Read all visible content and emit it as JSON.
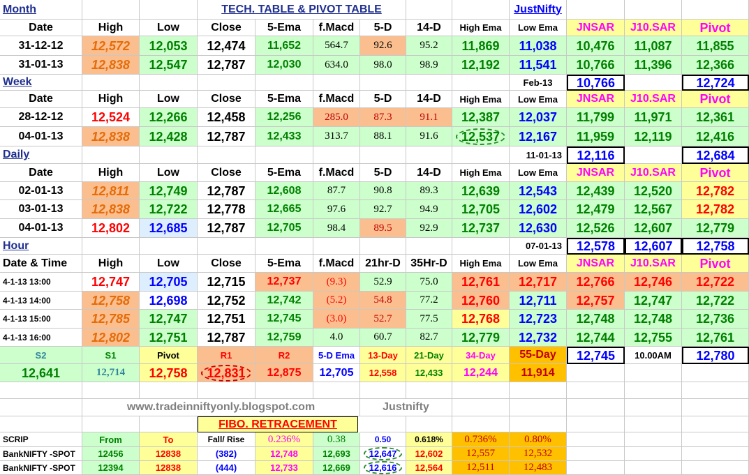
{
  "title": "TECH. TABLE  & PIVOT TABLE",
  "brand": "JustNifty",
  "website": "www.tradeinniftyonly.blogspot.com",
  "brand2": "Justnifty",
  "sections": {
    "month": "Month",
    "week": "Week",
    "daily": "Daily",
    "hour": "Hour"
  },
  "headers": {
    "date": "Date",
    "date_time": "Date & Time",
    "high": "High",
    "low": "Low",
    "close": "Close",
    "ema5": "5-Ema",
    "fmacd": "f.Macd",
    "d5": "5-D",
    "d14": "14-D",
    "hr21": "21hr-D",
    "hr35": "35Hr-D",
    "high_ema": "High Ema",
    "low_ema": "Low Ema",
    "jnsar": "JNSAR",
    "j10sar": "J10.SAR",
    "pivot": "Pivot"
  },
  "month": {
    "rows": [
      {
        "date": "31-12-12",
        "high": "12,572",
        "low": "12,053",
        "close": "12,474",
        "ema5": "11,652",
        "fmacd": "564.7",
        "d5": "92.6",
        "d14": "95.2",
        "high_ema": "11,869",
        "low_ema": "11,038",
        "jnsar": "10,476",
        "j10sar": "11,087",
        "pivot": "11,855"
      },
      {
        "date": "31-01-13",
        "high": "12,838",
        "low": "12,547",
        "close": "12,787",
        "ema5": "12,030",
        "fmacd": "634.0",
        "d5": "98.0",
        "d14": "98.9",
        "high_ema": "12,192",
        "low_ema": "11,541",
        "jnsar": "10,766",
        "j10sar": "11,396",
        "pivot": "12,366"
      }
    ],
    "next_label": "Feb-13",
    "next_jnsar": "10,766",
    "next_pivot": "12,724"
  },
  "week": {
    "rows": [
      {
        "date": "28-12-12",
        "high": "12,524",
        "low": "12,266",
        "close": "12,458",
        "ema5": "12,256",
        "fmacd": "285.0",
        "d5": "87.3",
        "d14": "91.1",
        "high_ema": "12,387",
        "low_ema": "12,037",
        "jnsar": "11,799",
        "j10sar": "11,971",
        "pivot": "12,361"
      },
      {
        "date": "04-01-13",
        "high": "12,838",
        "low": "12,428",
        "close": "12,787",
        "ema5": "12,433",
        "fmacd": "313.7",
        "d5": "88.1",
        "d14": "91.6",
        "high_ema": "12,537",
        "low_ema": "12,167",
        "jnsar": "11,959",
        "j10sar": "12,119",
        "pivot": "12,416"
      }
    ],
    "next_label": "11-01-13",
    "next_jnsar": "12,116",
    "next_pivot": "12,684"
  },
  "daily": {
    "rows": [
      {
        "date": "02-01-13",
        "high": "12,811",
        "low": "12,749",
        "close": "12,787",
        "ema5": "12,608",
        "fmacd": "87.7",
        "d5": "90.8",
        "d14": "89.3",
        "high_ema": "12,639",
        "low_ema": "12,543",
        "jnsar": "12,439",
        "j10sar": "12,520",
        "pivot": "12,782"
      },
      {
        "date": "03-01-13",
        "high": "12,838",
        "low": "12,722",
        "close": "12,778",
        "ema5": "12,665",
        "fmacd": "97.6",
        "d5": "92.7",
        "d14": "94.9",
        "high_ema": "12,705",
        "low_ema": "12,602",
        "jnsar": "12,479",
        "j10sar": "12,567",
        "pivot": "12,782"
      },
      {
        "date": "04-01-13",
        "high": "12,802",
        "low": "12,685",
        "close": "12,787",
        "ema5": "12,705",
        "fmacd": "98.4",
        "d5": "89.5",
        "d14": "92.9",
        "high_ema": "12,737",
        "low_ema": "12,630",
        "jnsar": "12,526",
        "j10sar": "12,607",
        "pivot": "12,779"
      }
    ],
    "next_label": "07-01-13",
    "next_jnsar": "12,578",
    "next_j10sar": "12,607",
    "next_pivot": "12,758"
  },
  "hour": {
    "rows": [
      {
        "date": "4-1-13 13:00",
        "high": "12,747",
        "low": "12,705",
        "close": "12,715",
        "ema5": "12,737",
        "fmacd": "(9.3)",
        "d5": "52.9",
        "d14": "75.0",
        "high_ema": "12,761",
        "low_ema": "12,717",
        "jnsar": "12,766",
        "j10sar": "12,746",
        "pivot": "12,722"
      },
      {
        "date": "4-1-13 14:00",
        "high": "12,758",
        "low": "12,698",
        "close": "12,752",
        "ema5": "12,742",
        "fmacd": "(5.2)",
        "d5": "54.8",
        "d14": "77.2",
        "high_ema": "12,760",
        "low_ema": "12,711",
        "jnsar": "12,757",
        "j10sar": "12,747",
        "pivot": "12,722"
      },
      {
        "date": "4-1-13 15:00",
        "high": "12,785",
        "low": "12,747",
        "close": "12,751",
        "ema5": "12,745",
        "fmacd": "(3.0)",
        "d5": "52.7",
        "d14": "77.5",
        "high_ema": "12,768",
        "low_ema": "12,723",
        "jnsar": "12,748",
        "j10sar": "12,748",
        "pivot": "12,736"
      },
      {
        "date": "4-1-13 16:00",
        "high": "12,802",
        "low": "12,751",
        "close": "12,787",
        "ema5": "12,759",
        "fmacd": "4.0",
        "d5": "60.7",
        "d14": "82.7",
        "high_ema": "12,779",
        "low_ema": "12,732",
        "jnsar": "12,744",
        "j10sar": "12,755",
        "pivot": "12,761"
      }
    ]
  },
  "pivot_levels": {
    "labels": [
      "S2",
      "S1",
      "Pivot",
      "R1",
      "R2",
      "5-D Ema",
      "13-Day",
      "21-Day",
      "34-Day",
      "55-Day"
    ],
    "values": [
      "12,641",
      "12,714",
      "12,758",
      "12,831",
      "12,875",
      "12,705",
      "12,558",
      "12,433",
      "12,244",
      "11,914"
    ],
    "extra_jnsar": "12,745",
    "time": "10.00AM",
    "extra_pivot": "12,780"
  },
  "fibo": {
    "title": "FIBO. RETRACEMENT",
    "headers": [
      "SCRIP",
      "From",
      "To",
      "Fall/ Rise",
      "0.236%",
      "0.38",
      "0.50",
      "0.618%",
      "0.736%",
      "0.80%"
    ],
    "rows": [
      [
        "BankNIFTY -SPOT",
        "12456",
        "12838",
        "(382)",
        "12,748",
        "12,693",
        "12,647",
        "12,602",
        "12,557",
        "12,532"
      ],
      [
        "BankNIFTY -SPOT",
        "12394",
        "12838",
        "(444)",
        "12,733",
        "12,669",
        "12,616",
        "12,564",
        "12,511",
        "12,483"
      ]
    ]
  },
  "colors": {
    "green": "#ccffcc",
    "orange": "#fbbf8f",
    "yellow": "#ffff99",
    "blue_text": "#0000ff",
    "red_text": "#ff0000",
    "green_text": "#008000",
    "magenta": "#ff00ff",
    "gold": "#ffc000"
  }
}
